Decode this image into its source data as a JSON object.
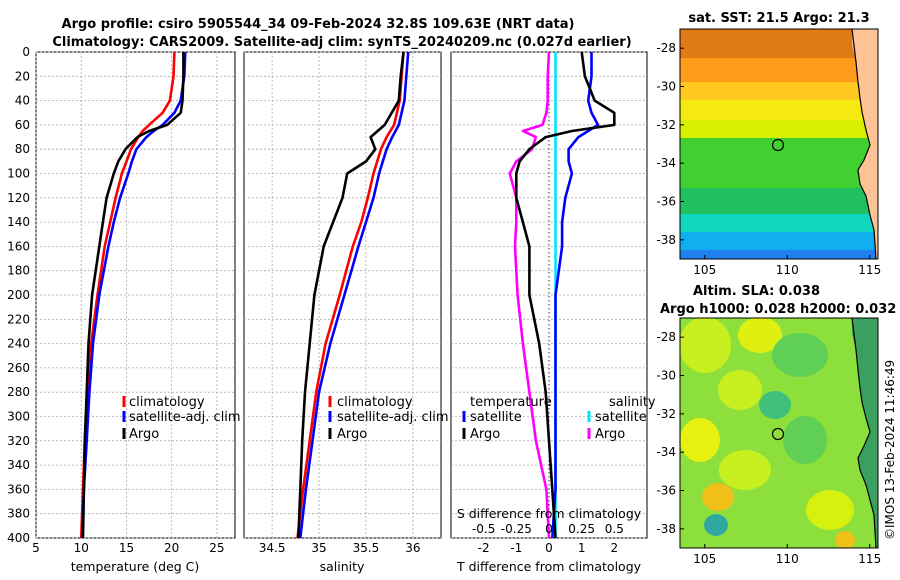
{
  "titles": {
    "line1": "Argo profile: csiro 5905544_34 09-Feb-2024 32.8S 109.63E (NRT data)",
    "line2": "Climatology: CARS2009. Satellite-adj clim: synTS_20240209.nc (0.027d earlier)"
  },
  "colors": {
    "climatology": "#ff0000",
    "satellite": "#0000ff",
    "argo": "#000000",
    "sal_sat": "#00e5ff",
    "sal_argo": "#ff00ff"
  },
  "chart_data": [
    {
      "type": "line",
      "id": "temperature",
      "xlabel": "temperature (deg C)",
      "xlim": [
        5,
        27
      ],
      "xticks": [
        "5",
        "10",
        "15",
        "20",
        "25"
      ],
      "ylim": [
        0,
        400
      ],
      "yticks": [
        "0",
        "20",
        "40",
        "60",
        "80",
        "100",
        "120",
        "140",
        "160",
        "180",
        "200",
        "220",
        "240",
        "260",
        "280",
        "300",
        "320",
        "340",
        "360",
        "380",
        "400"
      ],
      "legend": [
        "climatology",
        "satellite-adj. clim",
        "Argo"
      ],
      "depth": [
        0,
        20,
        40,
        50,
        60,
        65,
        70,
        80,
        90,
        100,
        120,
        140,
        160,
        200,
        240,
        280,
        320,
        360,
        400
      ],
      "series": [
        {
          "name": "climatology",
          "color": "#ff0000",
          "values": [
            20.3,
            20.2,
            19.8,
            19.0,
            17.5,
            16.8,
            16.3,
            15.5,
            15.0,
            14.5,
            13.8,
            13.2,
            12.6,
            11.8,
            11.1,
            10.7,
            10.4,
            10.2,
            10.0
          ]
        },
        {
          "name": "satellite-adj. clim",
          "color": "#0000ff",
          "values": [
            21.5,
            21.4,
            21.0,
            20.3,
            19.0,
            18.0,
            17.2,
            16.1,
            15.6,
            15.2,
            14.3,
            13.6,
            13.0,
            12.0,
            11.3,
            10.9,
            10.6,
            10.3,
            10.1
          ]
        },
        {
          "name": "Argo",
          "color": "#000000",
          "values": [
            21.3,
            21.3,
            21.2,
            21.0,
            19.5,
            17.5,
            16.2,
            14.9,
            14.1,
            13.6,
            12.8,
            12.4,
            12.0,
            11.2,
            10.8,
            10.6,
            10.4,
            10.3,
            10.2
          ]
        }
      ]
    },
    {
      "type": "line",
      "id": "salinity",
      "xlabel": "salinity",
      "xlim": [
        34.2,
        36.3
      ],
      "xticks": [
        "34.5",
        "35",
        "35.5",
        "36"
      ],
      "ylim": [
        0,
        400
      ],
      "legend": [
        "climatology",
        "satellite-adj. clim",
        "Argo"
      ],
      "depth": [
        0,
        20,
        40,
        60,
        70,
        80,
        90,
        100,
        120,
        140,
        160,
        200,
        240,
        280,
        320,
        360,
        400
      ],
      "series": [
        {
          "name": "climatology",
          "color": "#ff0000",
          "values": [
            35.9,
            35.88,
            35.86,
            35.8,
            35.72,
            35.66,
            35.62,
            35.58,
            35.52,
            35.45,
            35.36,
            35.22,
            35.07,
            34.97,
            34.9,
            34.83,
            34.77
          ]
        },
        {
          "name": "satellite-adj. clim",
          "color": "#0000ff",
          "values": [
            35.95,
            35.93,
            35.91,
            35.85,
            35.78,
            35.72,
            35.68,
            35.64,
            35.58,
            35.5,
            35.42,
            35.27,
            35.12,
            35.0,
            34.93,
            34.86,
            34.8
          ]
        },
        {
          "name": "Argo",
          "color": "#000000",
          "values": [
            35.9,
            35.87,
            35.85,
            35.7,
            35.55,
            35.6,
            35.5,
            35.3,
            35.25,
            35.15,
            35.05,
            34.95,
            34.9,
            34.85,
            34.82,
            34.8,
            34.78
          ]
        }
      ]
    },
    {
      "type": "line",
      "id": "difference",
      "xlabel": "T difference from climatology",
      "xlabel_top": "S difference from climatology",
      "xlim": [
        -3,
        3
      ],
      "xticks": [
        "-2",
        "-1",
        "0",
        "1",
        "2"
      ],
      "s_xlim": [
        -0.75,
        0.75
      ],
      "s_xticks": [
        "-0.5",
        "-0.25",
        "0",
        "0.25",
        "0.5"
      ],
      "ylim": [
        0,
        400
      ],
      "legend_headers": [
        "temperature",
        "salinity"
      ],
      "legend": [
        "satellite",
        "Argo",
        "satellite",
        "Argo"
      ],
      "depth": [
        0,
        20,
        40,
        50,
        60,
        65,
        70,
        80,
        90,
        100,
        120,
        140,
        160,
        200,
        240,
        280,
        320,
        360,
        400
      ],
      "t_series": [
        {
          "name": "satellite",
          "color": "#0000ff",
          "values": [
            1.3,
            1.3,
            1.2,
            1.3,
            1.5,
            1.2,
            0.9,
            0.6,
            0.6,
            0.7,
            0.5,
            0.4,
            0.4,
            0.2,
            0.2,
            0.2,
            0.2,
            0.2,
            0.1
          ]
        },
        {
          "name": "Argo",
          "color": "#000000",
          "values": [
            1.0,
            1.1,
            1.4,
            2.0,
            2.0,
            0.7,
            -0.1,
            -0.6,
            -0.9,
            -1.0,
            -1.0,
            -0.8,
            -0.6,
            -0.6,
            -0.3,
            -0.1,
            0.0,
            0.1,
            0.2
          ]
        }
      ],
      "s_series": [
        {
          "name": "satellite",
          "color": "#00e5ff",
          "values": [
            0.05,
            0.05,
            0.05,
            0.05,
            0.05,
            0.05,
            0.05,
            0.05,
            0.05,
            0.05,
            0.05,
            0.05,
            0.05,
            0.05,
            0.05,
            0.05,
            0.05,
            0.05,
            0.05
          ]
        },
        {
          "name": "Argo",
          "color": "#ff00ff",
          "values": [
            0.0,
            -0.01,
            -0.01,
            -0.02,
            -0.05,
            -0.2,
            -0.1,
            -0.13,
            -0.25,
            -0.3,
            -0.25,
            -0.25,
            -0.26,
            -0.24,
            -0.2,
            -0.15,
            -0.1,
            -0.02,
            0.0
          ]
        }
      ]
    },
    {
      "type": "heatmap",
      "id": "sst-map",
      "title": "sat. SST: 21.5 Argo: 21.3",
      "xlim": [
        103.5,
        115.5
      ],
      "ylim": [
        -39,
        -27
      ],
      "xticks": [
        "105",
        "110",
        "115"
      ],
      "yticks": [
        "-28",
        "-30",
        "-32",
        "-34",
        "-36",
        "-38"
      ],
      "argo_position": [
        109.63,
        -32.8
      ]
    },
    {
      "type": "heatmap",
      "id": "sla-map",
      "title1": "Altim. SLA: 0.038",
      "title2": "Argo h1000: 0.028 h2000: 0.032",
      "xlim": [
        103.5,
        115.5
      ],
      "ylim": [
        -39,
        -27
      ],
      "xticks": [
        "105",
        "110",
        "115"
      ],
      "yticks": [
        "-28",
        "-30",
        "-32",
        "-34",
        "-36",
        "-38"
      ],
      "argo_position": [
        109.63,
        -32.8
      ]
    }
  ],
  "footer": {
    "credit": "©IMOS 13-Feb-2024 11:46:49"
  }
}
